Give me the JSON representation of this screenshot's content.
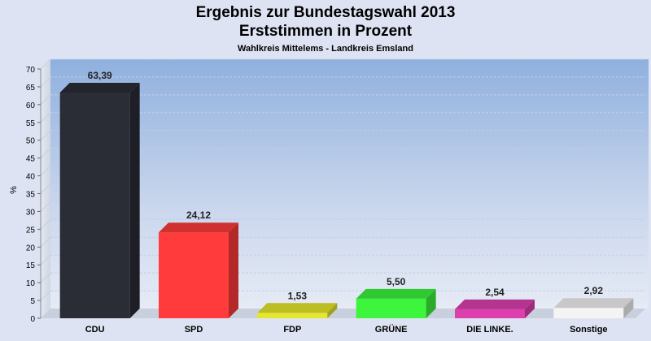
{
  "header": {
    "title": "Ergebnis zur Bundestagswahl 2013",
    "subtitle": "Erststimmen in Prozent",
    "caption": "Wahlkreis Mittelems - Landkreis Emsland"
  },
  "chart_data": {
    "type": "bar",
    "categories": [
      "CDU",
      "SPD",
      "FDP",
      "GRÜNE",
      "DIE LINKE.",
      "Sonstige"
    ],
    "values": [
      63.39,
      24.12,
      1.53,
      5.5,
      2.54,
      2.92
    ],
    "value_labels": [
      "63,39",
      "24,12",
      "1,53",
      "5,50",
      "2,54",
      "2,92"
    ],
    "colors": [
      "#2b2d36",
      "#ff3b3b",
      "#e6e62c",
      "#3cf53c",
      "#dd3fae",
      "#f4f4f4"
    ],
    "ylabel": "%",
    "ylim": [
      0,
      70
    ],
    "yticks": [
      0,
      5,
      10,
      15,
      20,
      25,
      30,
      35,
      40,
      45,
      50,
      55,
      60,
      65,
      70
    ],
    "grid": true,
    "style": "3d"
  }
}
